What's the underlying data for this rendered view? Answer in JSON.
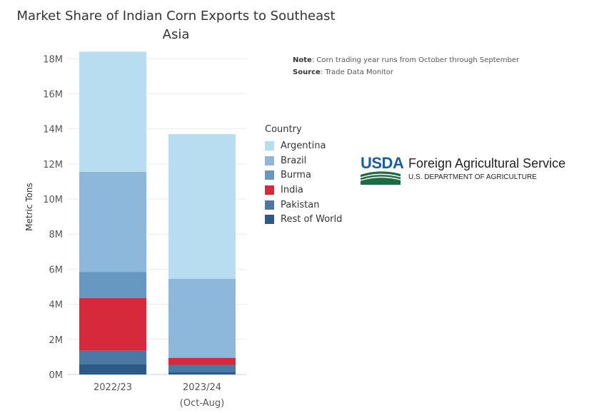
{
  "chart_data": {
    "type": "bar",
    "stacked": true,
    "title": "Market Share of Indian Corn Exports to Southeast Asia",
    "ylabel": "Metric Tons",
    "xlabel": "",
    "ylim": [
      0,
      18500000
    ],
    "y_ticks": [
      0,
      2000000,
      4000000,
      6000000,
      8000000,
      10000000,
      12000000,
      14000000,
      16000000,
      18000000
    ],
    "y_tick_labels": [
      "0M",
      "2M",
      "4M",
      "6M",
      "8M",
      "10M",
      "12M",
      "14M",
      "16M",
      "18M"
    ],
    "categories": [
      "2022/23",
      "2023/24 (Oct-Aug)"
    ],
    "category_label_lines": [
      [
        "2022/23"
      ],
      [
        "2023/24",
        "(Oct-Aug)"
      ]
    ],
    "series": [
      {
        "name": "Rest of World",
        "color": "#2d5986",
        "values": [
          600000,
          120000
        ]
      },
      {
        "name": "Pakistan",
        "color": "#4a79a5",
        "values": [
          750000,
          430000
        ]
      },
      {
        "name": "India",
        "color": "#d62a3c",
        "values": [
          3000000,
          400000
        ]
      },
      {
        "name": "Burma",
        "color": "#6798c1",
        "values": [
          1500000,
          0
        ]
      },
      {
        "name": "Brazil",
        "color": "#8db8dc",
        "values": [
          5700000,
          4500000
        ]
      },
      {
        "name": "Argentina",
        "color": "#b8dcf0",
        "values": [
          6850000,
          8250000
        ]
      }
    ],
    "grid": true,
    "legend_position": "right"
  },
  "legend": {
    "title": "Country",
    "items": [
      {
        "label": "Argentina",
        "color": "#b8dcf0"
      },
      {
        "label": "Brazil",
        "color": "#8db8dc"
      },
      {
        "label": "Burma",
        "color": "#6798c1"
      },
      {
        "label": "India",
        "color": "#d62a3c"
      },
      {
        "label": "Pakistan",
        "color": "#4a79a5"
      },
      {
        "label": "Rest of World",
        "color": "#2d5986"
      }
    ]
  },
  "notes": {
    "note_label": "Note",
    "note_text": ": Corn trading year runs from October through September",
    "source_label": "Source",
    "source_text": ": Trade Data Monitor"
  },
  "logo": {
    "wordmark": "USDA",
    "agency": "Foreign Agricultural Service",
    "department": "U.S. DEPARTMENT OF AGRICULTURE",
    "brand_blue": "#1a5fa0",
    "brand_green": "#1e6b45"
  }
}
